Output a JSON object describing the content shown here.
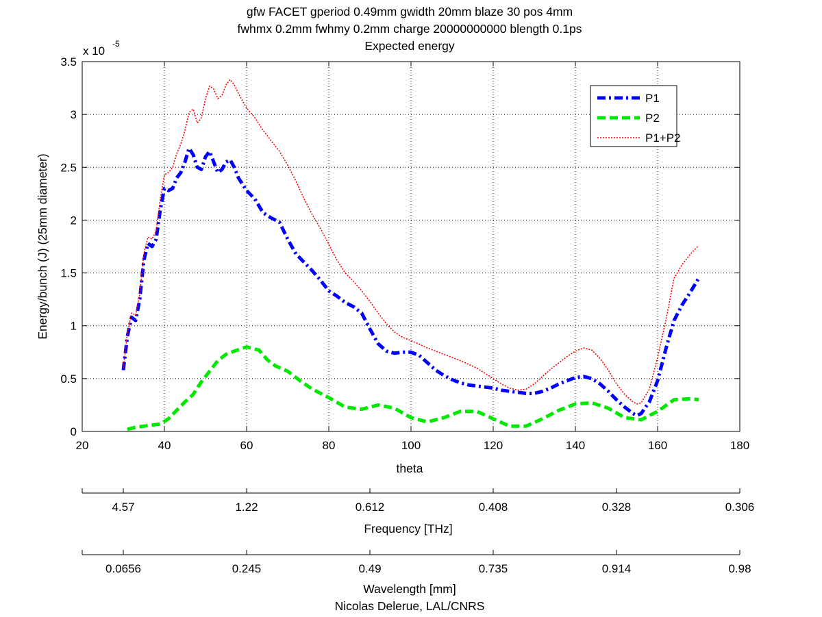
{
  "chart_data": {
    "type": "line",
    "title": [
      "gfw FACET gperiod 0.49mm gwidth 20mm blaze 30 pos 4mm",
      "fwhmx 0.2mm fwhmy 0.2mm charge 20000000000 blength 0.1ps",
      "Expected energy"
    ],
    "xlabel": "theta",
    "ylabel": "Energy/bunch (J) (25mm diameter)",
    "y_multiplier_label": "x 10",
    "y_multiplier_exponent": "-5",
    "xlim": [
      20,
      180
    ],
    "ylim": [
      0,
      3.5
    ],
    "x_ticks": [
      20,
      40,
      60,
      80,
      100,
      120,
      140,
      160,
      180
    ],
    "y_ticks": [
      0,
      0.5,
      1,
      1.5,
      2,
      2.5,
      3,
      3.5
    ],
    "x_tick_labels": [
      "20",
      "40",
      "60",
      "80",
      "100",
      "120",
      "140",
      "160",
      "180"
    ],
    "y_tick_labels": [
      "0",
      "0.5",
      "1",
      "1.5",
      "2",
      "2.5",
      "3",
      "3.5"
    ],
    "grid": true,
    "legend_position": "top-right",
    "series": [
      {
        "name": "P1",
        "color": "#0000ff",
        "style": "dash-dot",
        "x": [
          30,
          31,
          32,
          33,
          34,
          35,
          36,
          37,
          38,
          39,
          40,
          41,
          42,
          43,
          44,
          45,
          46,
          47,
          48,
          49,
          50,
          51,
          52,
          53,
          54,
          55,
          56,
          57,
          58,
          60,
          62,
          64,
          66,
          68,
          70,
          72,
          74,
          76,
          78,
          80,
          82,
          84,
          86,
          88,
          90,
          92,
          94,
          96,
          98,
          100,
          102,
          104,
          106,
          108,
          110,
          112,
          114,
          116,
          118,
          120,
          122,
          124,
          126,
          128,
          130,
          132,
          134,
          136,
          138,
          140,
          142,
          144,
          146,
          148,
          150,
          152,
          154,
          155,
          156,
          158,
          160,
          162,
          164,
          166,
          168,
          170
        ],
        "values": [
          0.58,
          0.9,
          1.08,
          1.05,
          1.25,
          1.62,
          1.78,
          1.75,
          1.82,
          2.1,
          2.3,
          2.28,
          2.3,
          2.4,
          2.45,
          2.55,
          2.68,
          2.62,
          2.5,
          2.48,
          2.6,
          2.65,
          2.55,
          2.45,
          2.48,
          2.55,
          2.57,
          2.5,
          2.4,
          2.28,
          2.2,
          2.07,
          2.02,
          1.98,
          1.82,
          1.68,
          1.6,
          1.52,
          1.43,
          1.33,
          1.28,
          1.22,
          1.18,
          1.12,
          0.97,
          0.83,
          0.76,
          0.74,
          0.75,
          0.75,
          0.72,
          0.65,
          0.58,
          0.53,
          0.49,
          0.46,
          0.44,
          0.43,
          0.42,
          0.41,
          0.39,
          0.38,
          0.37,
          0.36,
          0.36,
          0.38,
          0.41,
          0.45,
          0.48,
          0.51,
          0.52,
          0.5,
          0.45,
          0.38,
          0.3,
          0.23,
          0.17,
          0.15,
          0.17,
          0.28,
          0.48,
          0.78,
          1.05,
          1.2,
          1.32,
          1.45
        ]
      },
      {
        "name": "P2",
        "color": "#00e800",
        "style": "dashed",
        "x": [
          31,
          33,
          35,
          37,
          39,
          41,
          43,
          45,
          47,
          49,
          51,
          53,
          55,
          57,
          60,
          63,
          65,
          67,
          70,
          73,
          76,
          80,
          84,
          88,
          92,
          96,
          100,
          104,
          108,
          112,
          116,
          120,
          124,
          128,
          132,
          136,
          140,
          144,
          148,
          152,
          156,
          160,
          164,
          168,
          170
        ],
        "values": [
          0.02,
          0.04,
          0.05,
          0.06,
          0.07,
          0.12,
          0.2,
          0.28,
          0.35,
          0.47,
          0.57,
          0.67,
          0.73,
          0.76,
          0.8,
          0.77,
          0.68,
          0.62,
          0.57,
          0.48,
          0.4,
          0.32,
          0.23,
          0.21,
          0.25,
          0.22,
          0.13,
          0.09,
          0.13,
          0.19,
          0.19,
          0.12,
          0.05,
          0.05,
          0.12,
          0.2,
          0.26,
          0.27,
          0.22,
          0.13,
          0.11,
          0.19,
          0.3,
          0.31,
          0.3
        ]
      },
      {
        "name": "P1+P2",
        "color": "#ff0000",
        "style": "dotted",
        "x": [
          30,
          31,
          32,
          33,
          34,
          35,
          36,
          37,
          38,
          39,
          40,
          41,
          42,
          43,
          44,
          45,
          46,
          47,
          48,
          49,
          50,
          51,
          52,
          53,
          54,
          55,
          56,
          57,
          58,
          60,
          62,
          64,
          66,
          68,
          70,
          72,
          74,
          76,
          78,
          80,
          82,
          84,
          86,
          88,
          90,
          92,
          94,
          96,
          98,
          100,
          104,
          108,
          112,
          116,
          120,
          122,
          124,
          126,
          128,
          130,
          132,
          134,
          136,
          138,
          140,
          142,
          144,
          146,
          148,
          150,
          152,
          154,
          155,
          156,
          158,
          160,
          162,
          164,
          166,
          168,
          170
        ],
        "values": [
          0.6,
          0.93,
          1.12,
          1.1,
          1.3,
          1.68,
          1.84,
          1.82,
          1.9,
          2.2,
          2.43,
          2.45,
          2.5,
          2.63,
          2.72,
          2.85,
          3.02,
          3.05,
          2.92,
          2.97,
          3.15,
          3.27,
          3.24,
          3.15,
          3.18,
          3.28,
          3.33,
          3.28,
          3.2,
          3.06,
          2.97,
          2.85,
          2.75,
          2.65,
          2.52,
          2.37,
          2.2,
          2.05,
          1.92,
          1.77,
          1.62,
          1.5,
          1.42,
          1.33,
          1.23,
          1.12,
          1.02,
          0.94,
          0.89,
          0.86,
          0.79,
          0.73,
          0.67,
          0.6,
          0.5,
          0.45,
          0.41,
          0.39,
          0.4,
          0.45,
          0.52,
          0.59,
          0.65,
          0.71,
          0.76,
          0.79,
          0.77,
          0.69,
          0.58,
          0.45,
          0.35,
          0.28,
          0.26,
          0.27,
          0.4,
          0.7,
          1.05,
          1.45,
          1.58,
          1.68,
          1.76
        ]
      }
    ],
    "frequency_axis": {
      "label": "Frequency [THz]",
      "ticks": [
        {
          "theta": 30,
          "label": "4.57"
        },
        {
          "theta": 60,
          "label": "1.22"
        },
        {
          "theta": 90,
          "label": "0.612"
        },
        {
          "theta": 120,
          "label": "0.408"
        },
        {
          "theta": 150,
          "label": "0.328"
        },
        {
          "theta": 180,
          "label": "0.306"
        }
      ]
    },
    "wavelength_axis": {
      "label": "Wavelength [mm]",
      "ticks": [
        {
          "theta": 30,
          "label": "0.0656"
        },
        {
          "theta": 60,
          "label": "0.245"
        },
        {
          "theta": 90,
          "label": "0.49"
        },
        {
          "theta": 120,
          "label": "0.735"
        },
        {
          "theta": 150,
          "label": "0.914"
        },
        {
          "theta": 180,
          "label": "0.98"
        }
      ]
    },
    "credit": "Nicolas Delerue, LAL/CNRS"
  }
}
